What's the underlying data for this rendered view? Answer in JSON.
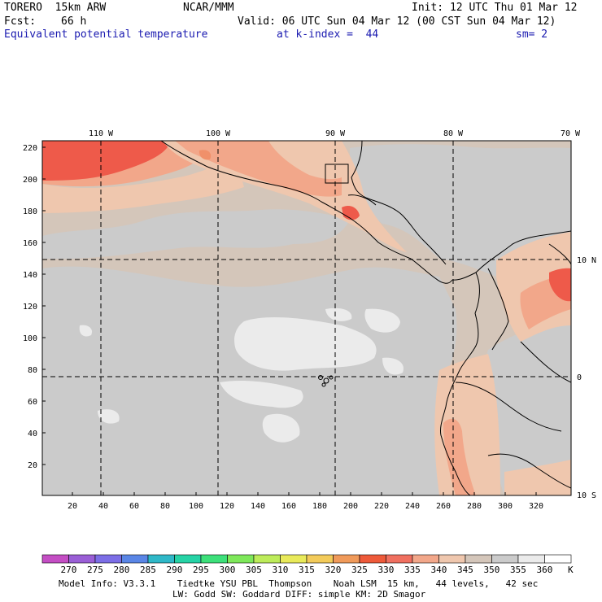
{
  "header": {
    "model": "TORERO  15km ARW",
    "center": "NCAR/MMM",
    "init": "Init: 12 UTC Thu 01 Mar 12",
    "fcst_label": "Fcst:",
    "fcst_value": "66 h",
    "valid": "Valid: 06 UTC Sun 04 Mar 12 (00 CST Sun 04 Mar 12)",
    "field": "Equivalent potential temperature",
    "level": "at k-index =  44",
    "smooth": "sm= 2"
  },
  "axes": {
    "top_lon_labels": [
      "110 W",
      "100 W",
      "90 W",
      "80 W",
      "70 W"
    ],
    "right_lat_labels": [
      "10 N",
      "0",
      "10 S"
    ],
    "left_ticks": [
      "220",
      "200",
      "180",
      "160",
      "140",
      "120",
      "100",
      "80",
      "60",
      "40",
      "20"
    ],
    "bottom_ticks": [
      "20",
      "40",
      "60",
      "80",
      "100",
      "120",
      "140",
      "160",
      "180",
      "200",
      "220",
      "240",
      "260",
      "280",
      "300",
      "320"
    ]
  },
  "colorbar": {
    "labels": [
      "270",
      "275",
      "280",
      "285",
      "290",
      "295",
      "300",
      "305",
      "310",
      "315",
      "320",
      "325",
      "330",
      "335",
      "340",
      "345",
      "350",
      "355",
      "360"
    ],
    "unit": "K",
    "colors": [
      "#c44ec4",
      "#9a5fd6",
      "#7c6ee6",
      "#5a86e6",
      "#2fb8c8",
      "#26d3a6",
      "#3de07a",
      "#7ee85a",
      "#bdec5a",
      "#e9ea5a",
      "#f3cb5a",
      "#f09a5a",
      "#ee5a3a",
      "#f07060",
      "#f2a78a",
      "#efc7ae",
      "#d4c6ba",
      "#cbcbcb",
      "#ebebeb",
      "#ffffff"
    ]
  },
  "footer": {
    "line1": "Model Info: V3.3.1    Tiedtke YSU PBL  Thompson    Noah LSM  15 km,   44 levels,   42 sec",
    "line2": "LW: Godd SW: Goddard DIFF: simple KM: 2D Smagor"
  },
  "palette": {
    "tan": "#d4c6ba",
    "gray": "#cbcbcb",
    "white_gray": "#ebebeb",
    "peach": "#efc7ae",
    "salmon": "#f2a78a",
    "red": "#ee5a4a",
    "orange": "#f0906a"
  }
}
